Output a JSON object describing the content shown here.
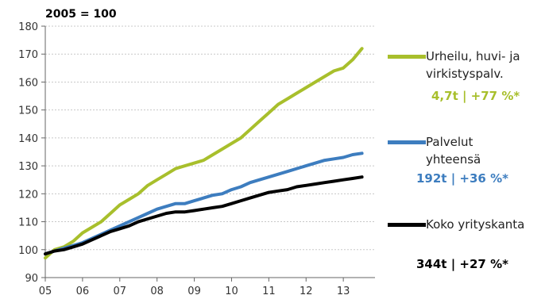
{
  "chart_data": {
    "type": "line",
    "ylabel": "2005 = 100",
    "ylim": [
      90,
      180
    ],
    "yticks": [
      90,
      100,
      110,
      120,
      130,
      140,
      150,
      160,
      170,
      180
    ],
    "xlim": [
      2005,
      2013.85
    ],
    "xticks": [
      {
        "label": "05",
        "value": 2005
      },
      {
        "label": "06",
        "value": 2006
      },
      {
        "label": "07",
        "value": 2007
      },
      {
        "label": "08",
        "value": 2008
      },
      {
        "label": "09",
        "value": 2009
      },
      {
        "label": "10",
        "value": 2010
      },
      {
        "label": "11",
        "value": 2011
      },
      {
        "label": "12",
        "value": 2012
      },
      {
        "label": "13",
        "value": 2013
      }
    ],
    "grid": "horizontal",
    "x": [
      2005.0,
      2005.25,
      2005.5,
      2005.75,
      2006.0,
      2006.25,
      2006.5,
      2006.75,
      2007.0,
      2007.25,
      2007.5,
      2007.75,
      2008.0,
      2008.25,
      2008.5,
      2008.75,
      2009.0,
      2009.25,
      2009.5,
      2009.75,
      2010.0,
      2010.25,
      2010.5,
      2010.75,
      2011.0,
      2011.25,
      2011.5,
      2011.75,
      2012.0,
      2012.25,
      2012.5,
      2012.75,
      2013.0,
      2013.25,
      2013.5
    ],
    "series": [
      {
        "name": "Urheilu, huvi- ja virkistyspalv.",
        "stat": "4,7t | +77 %*",
        "color": "#a8bf2c",
        "values": [
          97,
          100,
          101,
          103,
          106,
          108,
          110,
          113,
          116,
          118,
          120,
          123,
          125,
          127,
          129,
          130,
          131,
          132,
          134,
          136,
          138,
          140,
          143,
          146,
          149,
          152,
          154,
          156,
          158,
          160,
          162,
          164,
          165,
          168,
          172
        ]
      },
      {
        "name": "Palvelut yhteensä",
        "stat": "192t | +36 %*",
        "color": "#3d7dbf",
        "values": [
          98.5,
          99.5,
          100.5,
          101.5,
          102.5,
          104,
          105.5,
          107,
          108.5,
          110,
          111.5,
          113,
          114.5,
          115.5,
          116.5,
          116.5,
          117.5,
          118.5,
          119.5,
          120,
          121.5,
          122.5,
          124,
          125,
          126,
          127,
          128,
          129,
          130,
          131,
          132,
          132.5,
          133,
          134,
          134.5
        ]
      },
      {
        "name": "Koko yrityskanta",
        "stat": "344t | +27 %*",
        "color": "#000000",
        "values": [
          98.5,
          99.5,
          100,
          101,
          102,
          103.5,
          105,
          106.5,
          107.5,
          108.5,
          110,
          111,
          112,
          113,
          113.5,
          113.5,
          114,
          114.5,
          115,
          115.5,
          116.5,
          117.5,
          118.5,
          119.5,
          120.5,
          121,
          121.5,
          122.5,
          123,
          123.5,
          124,
          124.5,
          125,
          125.5,
          126
        ]
      }
    ]
  }
}
